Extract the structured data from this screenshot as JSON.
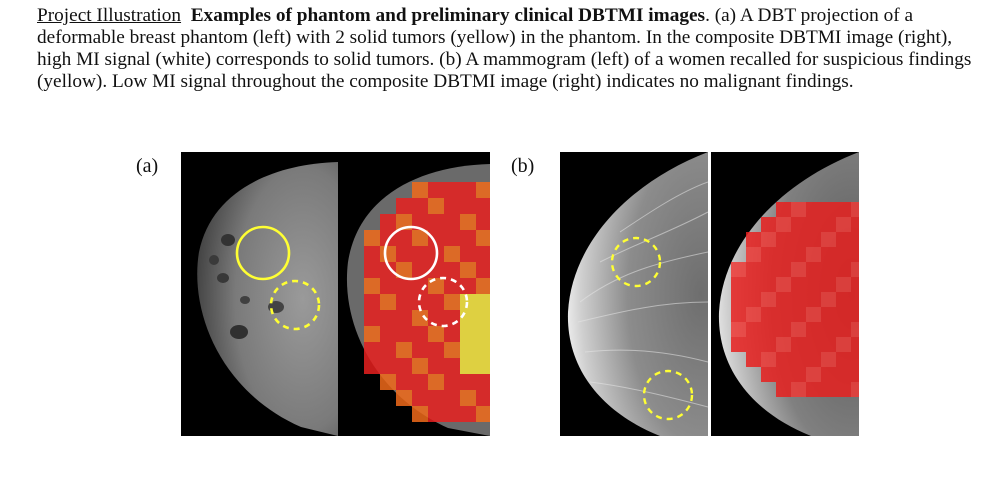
{
  "caption": {
    "lead": "Project Illustration",
    "title": "Examples of phantom and preliminary clinical DBTMI images",
    "body": ". (a) A DBT projection of a deformable breast phantom (left) with 2 solid tumors (yellow) in the phantom. In the composite DBTMI image (right), high MI signal (white) corresponds to solid tumors. (b)  A mammogram (left) of a women recalled for suspicious findings (yellow). Low MI signal throughout the composite DBTMI image (right) indicates no malignant findings."
  },
  "panels": {
    "a_label": "(a)",
    "b_label": "(b)"
  },
  "colors": {
    "annotation_yellow": "#ffff33",
    "annotation_white": "#ffffff",
    "mi_red": "#e8201e",
    "mi_orange": "#f06a1a",
    "mi_yellow": "#f2e23a"
  }
}
